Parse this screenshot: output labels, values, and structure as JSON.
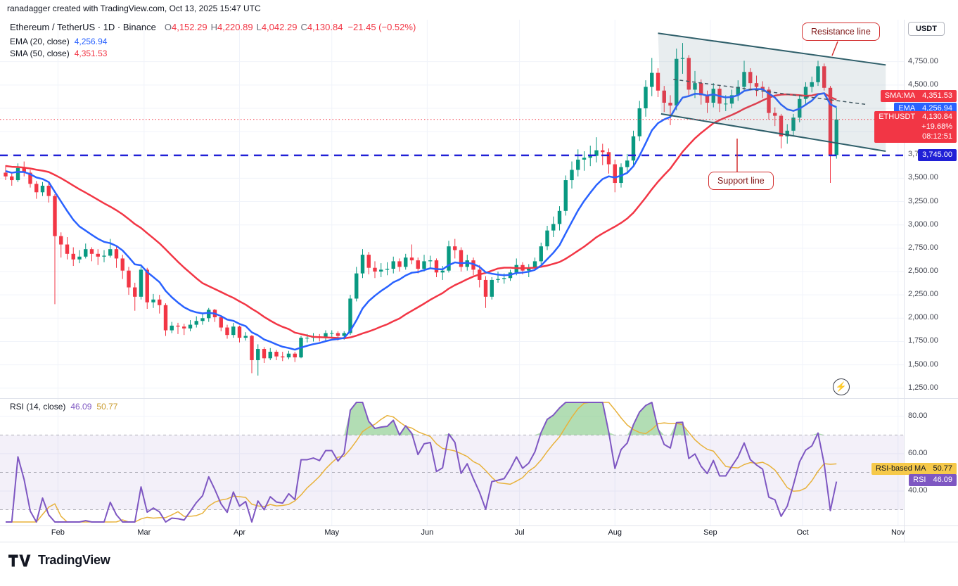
{
  "attribution": "ranadagger created with TradingView.com, Oct 13, 2025 15:47 UTC",
  "symbol_legend": {
    "title": "Ethereum / TetherUS · 1D · Binance",
    "ohlc": [
      {
        "k": "O",
        "v": "4,152.29"
      },
      {
        "k": "H",
        "v": "4,220.89"
      },
      {
        "k": "L",
        "v": "4,042.29"
      },
      {
        "k": "C",
        "v": "4,130.84"
      }
    ],
    "change": "−21.45 (−0.52%)"
  },
  "ema_legend": {
    "label": "EMA (20, close)",
    "value": "4,256.94"
  },
  "sma_legend": {
    "label": "SMA (50, close)",
    "value": "4,351.53"
  },
  "rsi_legend": {
    "label": "RSI (14, close)",
    "value": "46.09",
    "ma_value": "50.77"
  },
  "axis": {
    "currency": "USDT",
    "price_ticks": [
      {
        "p": 4750,
        "t": "4,750.00"
      },
      {
        "p": 4500,
        "t": "4,500.00"
      },
      {
        "p": 4250,
        "t": "4,250.00"
      },
      {
        "p": 4000,
        "t": "4,000.00"
      },
      {
        "p": 3750,
        "t": "3,750.00"
      },
      {
        "p": 3500,
        "t": "3,500.00"
      },
      {
        "p": 3250,
        "t": "3,250.00"
      },
      {
        "p": 3000,
        "t": "3,000.00"
      },
      {
        "p": 2750,
        "t": "2,750.00"
      },
      {
        "p": 2500,
        "t": "2,500.00"
      },
      {
        "p": 2250,
        "t": "2,250.00"
      },
      {
        "p": 2000,
        "t": "2,000.00"
      },
      {
        "p": 1750,
        "t": "1,750.00"
      },
      {
        "p": 1500,
        "t": "1,500.00"
      },
      {
        "p": 1250,
        "t": "1,250.00"
      }
    ],
    "rsi_ticks": [
      {
        "v": 80,
        "t": "80.00"
      },
      {
        "v": 60,
        "t": "60.00"
      },
      {
        "v": 40,
        "t": "40.00"
      }
    ],
    "months": [
      {
        "label": "Feb",
        "i": 8.5
      },
      {
        "label": "Mar",
        "i": 22.5
      },
      {
        "label": "Apr",
        "i": 38
      },
      {
        "label": "May",
        "i": 53
      },
      {
        "label": "Jun",
        "i": 68.5
      },
      {
        "label": "Jul",
        "i": 83.5
      },
      {
        "label": "Aug",
        "i": 99
      },
      {
        "label": "Sep",
        "i": 114.5
      },
      {
        "label": "Oct",
        "i": 129.5
      },
      {
        "label": "Nov",
        "i": 145
      }
    ]
  },
  "badges": {
    "sma": {
      "label": "SMA:MA",
      "value": "4,351.53"
    },
    "ema": {
      "label": "EMA",
      "value": "4,256.94"
    },
    "last": {
      "label": "ETHUSDT",
      "value": "4,130.84",
      "change_pct": "+19.68%",
      "countdown": "08:12:51"
    },
    "support": {
      "value": "3,745.00"
    }
  },
  "rsi_badges": {
    "ma": {
      "label": "RSI-based MA",
      "value": "50.77"
    },
    "rsi": {
      "label": "RSI",
      "value": "46.09"
    }
  },
  "annotations": {
    "resistance": "Resistance line",
    "support": "Support line"
  },
  "logo_text": "TradingView",
  "colors": {
    "up": "#089981",
    "down": "#f23645",
    "ema": "#2962ff",
    "sma": "#f23645",
    "support_line": "#2020d6",
    "last_line": "#f23645",
    "channel": "#2f5f6a",
    "channel_fill": "rgba(93,124,141,0.14)",
    "midline": "#455a64",
    "rsi": "#7e57c2",
    "rsi_ma": "#e8b23c",
    "rsi_band": "rgba(126,87,194,0.09)",
    "rsi_fill": "rgba(102,187,106,0.5)",
    "grid": "#f0f3fa",
    "axis_border": "#e0e3eb",
    "badge_sma": "#f23645",
    "badge_ema": "#2962ff",
    "badge_last": "#f23645",
    "badge_support": "#2020d6",
    "badge_rsi": "#7e57c2",
    "badge_rsi_ma": "#f6c94a",
    "callout": "#d32f2f"
  },
  "chart_data": {
    "type": "candlestick",
    "title": "Ethereum / TetherUS · 1D · Binance",
    "symbol": "ETHUSDT",
    "exchange": "Binance",
    "interval": "1D",
    "price_axis_range": [
      1150,
      5200
    ],
    "rsi_axis_range": [
      23.4,
      87.5
    ],
    "bar_step_days": 2,
    "pre_closes": [
      3700,
      3695,
      3690,
      3685,
      3680,
      3675,
      3670,
      3665,
      3660,
      3655,
      3650,
      3645,
      3640,
      3635,
      3630,
      3625,
      3620,
      3610,
      3600,
      3590,
      3580,
      3570,
      3560,
      3550
    ],
    "candles": [
      [
        3560,
        3640,
        3480,
        3520
      ],
      [
        3520,
        3560,
        3420,
        3480
      ],
      [
        3480,
        3660,
        3460,
        3610
      ],
      [
        3610,
        3680,
        3520,
        3560
      ],
      [
        3560,
        3590,
        3400,
        3440
      ],
      [
        3440,
        3470,
        3280,
        3350
      ],
      [
        3350,
        3460,
        3310,
        3420
      ],
      [
        3420,
        3450,
        3240,
        3310
      ],
      [
        3310,
        3330,
        2150,
        2880
      ],
      [
        2880,
        2920,
        2650,
        2790
      ],
      [
        2790,
        2870,
        2630,
        2690
      ],
      [
        2690,
        2760,
        2560,
        2630
      ],
      [
        2630,
        2730,
        2590,
        2660
      ],
      [
        2660,
        2800,
        2640,
        2740
      ],
      [
        2740,
        2760,
        2610,
        2690
      ],
      [
        2690,
        2740,
        2570,
        2660
      ],
      [
        2660,
        2730,
        2600,
        2670
      ],
      [
        2670,
        2850,
        2650,
        2740
      ],
      [
        2740,
        2770,
        2540,
        2640
      ],
      [
        2640,
        2680,
        2420,
        2510
      ],
      [
        2510,
        2550,
        2250,
        2330
      ],
      [
        2330,
        2380,
        2080,
        2230
      ],
      [
        2230,
        2550,
        2200,
        2520
      ],
      [
        2520,
        2540,
        2100,
        2170
      ],
      [
        2170,
        2260,
        2110,
        2200
      ],
      [
        2200,
        2250,
        2050,
        2140
      ],
      [
        2140,
        2160,
        1810,
        1870
      ],
      [
        1870,
        1960,
        1840,
        1920
      ],
      [
        1920,
        1950,
        1830,
        1910
      ],
      [
        1910,
        1940,
        1820,
        1890
      ],
      [
        1890,
        1980,
        1860,
        1930
      ],
      [
        1930,
        2020,
        1900,
        1970
      ],
      [
        1970,
        2060,
        1930,
        2000
      ],
      [
        2000,
        2110,
        1960,
        2090
      ],
      [
        2090,
        2100,
        1960,
        2010
      ],
      [
        2010,
        2030,
        1860,
        1900
      ],
      [
        1900,
        1930,
        1780,
        1820
      ],
      [
        1820,
        1950,
        1790,
        1910
      ],
      [
        1910,
        1920,
        1740,
        1790
      ],
      [
        1790,
        1850,
        1760,
        1810
      ],
      [
        1810,
        1820,
        1410,
        1550
      ],
      [
        1550,
        1720,
        1385,
        1670
      ],
      [
        1670,
        1690,
        1520,
        1570
      ],
      [
        1570,
        1680,
        1550,
        1640
      ],
      [
        1640,
        1660,
        1550,
        1590
      ],
      [
        1590,
        1640,
        1540,
        1580
      ],
      [
        1580,
        1650,
        1560,
        1620
      ],
      [
        1620,
        1640,
        1530,
        1580
      ],
      [
        1580,
        1810,
        1570,
        1790
      ],
      [
        1790,
        1830,
        1740,
        1790
      ],
      [
        1790,
        1840,
        1750,
        1800
      ],
      [
        1800,
        1830,
        1750,
        1790
      ],
      [
        1790,
        1870,
        1760,
        1840
      ],
      [
        1840,
        1870,
        1780,
        1840
      ],
      [
        1840,
        1860,
        1760,
        1810
      ],
      [
        1810,
        1860,
        1770,
        1840
      ],
      [
        1840,
        2250,
        1820,
        2210
      ],
      [
        2210,
        2550,
        2180,
        2480
      ],
      [
        2480,
        2740,
        2430,
        2680
      ],
      [
        2680,
        2710,
        2470,
        2540
      ],
      [
        2540,
        2610,
        2430,
        2500
      ],
      [
        2500,
        2590,
        2440,
        2520
      ],
      [
        2520,
        2600,
        2460,
        2530
      ],
      [
        2530,
        2660,
        2480,
        2610
      ],
      [
        2610,
        2640,
        2500,
        2550
      ],
      [
        2550,
        2690,
        2520,
        2650
      ],
      [
        2650,
        2790,
        2580,
        2620
      ],
      [
        2620,
        2650,
        2480,
        2530
      ],
      [
        2530,
        2680,
        2500,
        2610
      ],
      [
        2610,
        2670,
        2530,
        2620
      ],
      [
        2620,
        2640,
        2440,
        2490
      ],
      [
        2490,
        2560,
        2410,
        2510
      ],
      [
        2510,
        2830,
        2490,
        2770
      ],
      [
        2770,
        2850,
        2640,
        2730
      ],
      [
        2730,
        2760,
        2500,
        2550
      ],
      [
        2550,
        2680,
        2510,
        2620
      ],
      [
        2620,
        2650,
        2460,
        2520
      ],
      [
        2520,
        2570,
        2330,
        2410
      ],
      [
        2410,
        2450,
        2110,
        2230
      ],
      [
        2230,
        2440,
        2200,
        2410
      ],
      [
        2410,
        2500,
        2380,
        2420
      ],
      [
        2420,
        2480,
        2370,
        2430
      ],
      [
        2430,
        2520,
        2400,
        2490
      ],
      [
        2490,
        2640,
        2460,
        2570
      ],
      [
        2570,
        2600,
        2470,
        2510
      ],
      [
        2510,
        2580,
        2440,
        2540
      ],
      [
        2540,
        2650,
        2510,
        2610
      ],
      [
        2610,
        2810,
        2580,
        2770
      ],
      [
        2770,
        2990,
        2730,
        2940
      ],
      [
        2940,
        3090,
        2870,
        3010
      ],
      [
        3010,
        3200,
        2940,
        3150
      ],
      [
        3150,
        3530,
        3100,
        3480
      ],
      [
        3480,
        3680,
        3390,
        3590
      ],
      [
        3590,
        3810,
        3520,
        3700
      ],
      [
        3700,
        3790,
        3580,
        3720
      ],
      [
        3720,
        3850,
        3630,
        3740
      ],
      [
        3740,
        3940,
        3670,
        3800
      ],
      [
        3800,
        3870,
        3640,
        3780
      ],
      [
        3780,
        3820,
        3550,
        3650
      ],
      [
        3650,
        3700,
        3350,
        3450
      ],
      [
        3450,
        3660,
        3400,
        3620
      ],
      [
        3620,
        3760,
        3560,
        3690
      ],
      [
        3690,
        4010,
        3640,
        3950
      ],
      [
        3950,
        4330,
        3900,
        4250
      ],
      [
        4250,
        4550,
        4160,
        4480
      ],
      [
        4480,
        4790,
        4380,
        4630
      ],
      [
        4630,
        4680,
        4370,
        4440
      ],
      [
        4440,
        4490,
        4210,
        4310
      ],
      [
        4310,
        4390,
        4070,
        4280
      ],
      [
        4280,
        4890,
        4230,
        4780
      ],
      [
        4780,
        4950,
        4620,
        4790
      ],
      [
        4790,
        4820,
        4390,
        4450
      ],
      [
        4450,
        4650,
        4360,
        4520
      ],
      [
        4520,
        4560,
        4290,
        4390
      ],
      [
        4390,
        4440,
        4200,
        4310
      ],
      [
        4310,
        4520,
        4260,
        4460
      ],
      [
        4460,
        4490,
        4210,
        4300
      ],
      [
        4300,
        4390,
        4220,
        4300
      ],
      [
        4300,
        4450,
        4250,
        4390
      ],
      [
        4390,
        4550,
        4330,
        4480
      ],
      [
        4480,
        4760,
        4430,
        4640
      ],
      [
        4640,
        4680,
        4440,
        4520
      ],
      [
        4520,
        4600,
        4380,
        4480
      ],
      [
        4480,
        4540,
        4360,
        4450
      ],
      [
        4450,
        4480,
        4130,
        4200
      ],
      [
        4200,
        4260,
        4060,
        4170
      ],
      [
        4170,
        4190,
        3820,
        3950
      ],
      [
        3950,
        4080,
        3870,
        4010
      ],
      [
        4010,
        4190,
        3960,
        4150
      ],
      [
        4150,
        4390,
        4100,
        4350
      ],
      [
        4350,
        4530,
        4280,
        4480
      ],
      [
        4480,
        4590,
        4420,
        4530
      ],
      [
        4530,
        4760,
        4490,
        4700
      ],
      [
        4700,
        4730,
        4440,
        4470
      ],
      [
        4470,
        4490,
        3450,
        3750
      ],
      [
        3750,
        4260,
        3710,
        4130
      ]
    ],
    "levels": {
      "support_price": 3745,
      "last_price": 4130.84
    },
    "channel": {
      "upper": {
        "i1": 106,
        "p1": 5055,
        "i2": 143,
        "p2": 4715
      },
      "lower": {
        "i1": 106.5,
        "p1": 4190,
        "i2": 143,
        "p2": 3790
      },
      "mid_dashed": {
        "i1": 108.5,
        "p1": 4560,
        "i2": 140,
        "p2": 4290
      }
    },
    "indicators": {
      "ema": {
        "period": 20,
        "value": 4256.94
      },
      "sma": {
        "period": 50,
        "value": 4351.53
      },
      "rsi": {
        "period": 14,
        "value": 46.09,
        "ma": 50.77,
        "bands": [
          70,
          50,
          30
        ],
        "overbought": 70,
        "oversold": 30
      }
    }
  }
}
